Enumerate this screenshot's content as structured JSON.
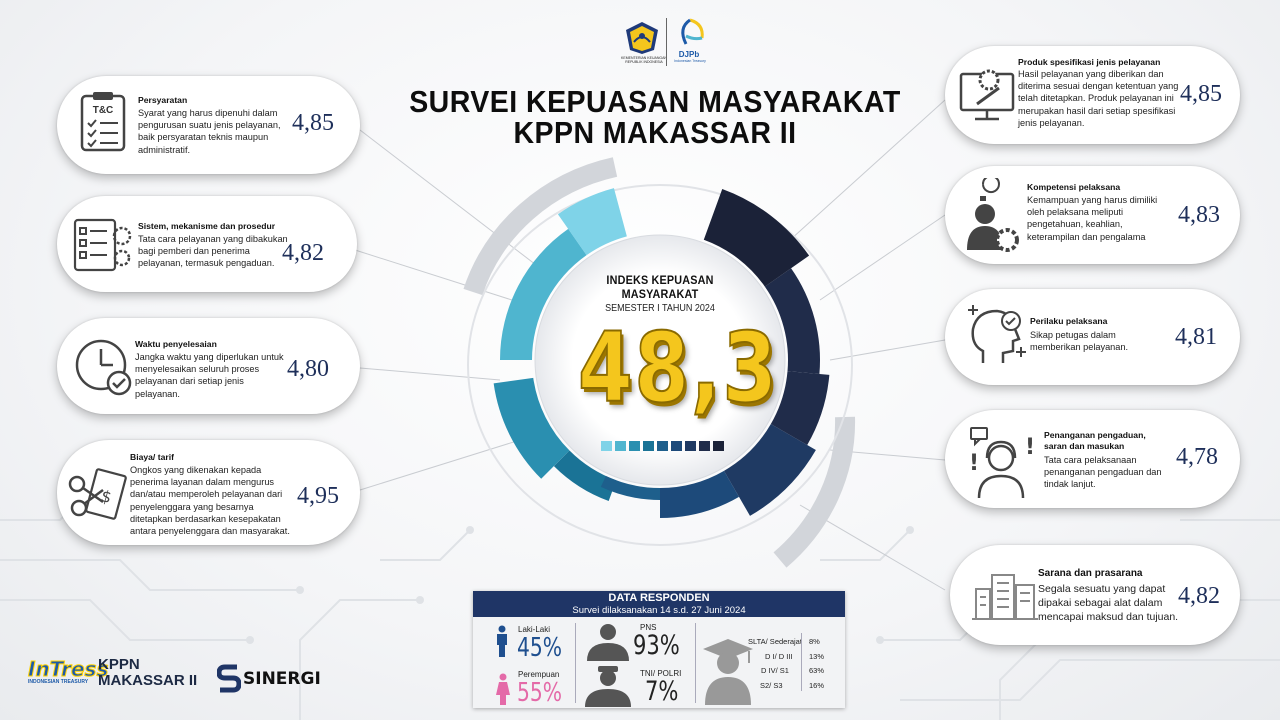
{
  "header": {
    "kemenkeu_caption": "KEMENTERIAN KEUANGAN\nREPUBLIK INDONESIA",
    "djpb_name": "DJPb",
    "djpb_sub": "Indonesian Treasury",
    "title_line1": "SURVEI KEPUASAN MASYARAKAT",
    "title_line2": "KPPN MAKASSAR II"
  },
  "index": {
    "title": "INDEKS KEPUASAN MASYARAKAT",
    "subtitle": "SEMESTER I TAHUN 2024",
    "value": "48,3"
  },
  "left_cards": [
    {
      "title": "Persyaratan",
      "desc": "Syarat yang harus dipenuhi dalam pengurusan suatu jenis pelayanan, baik persyaratan teknis maupun administratif.",
      "score": "4,85",
      "icon": "clipboard-checklist-icon",
      "icon_label": "T&C"
    },
    {
      "title": "Sistem, mekanisme dan prosedur",
      "desc": "Tata cara pelayanan yang dibakukan bagi pemberi dan penerima pelayanan, termasuk pengaduan.",
      "score": "4,82",
      "icon": "checklist-gears-icon"
    },
    {
      "title": "Waktu penyelesaian",
      "desc": "Jangka waktu yang diperlukan untuk menyelesaikan seluruh proses pelayanan dari setiap jenis pelayanan.",
      "score": "4,80",
      "icon": "clock-check-icon"
    },
    {
      "title": "Biaya/ tarif",
      "desc": "Ongkos yang dikenakan kepada penerima layanan dalam mengurus dan/atau memperoleh pelayanan dari penyelenggara yang besarnya ditetapkan berdasarkan kesepakatan antara penyelenggara dan masyarakat.",
      "score": "4,95",
      "icon": "scissors-receipt-icon"
    }
  ],
  "right_cards": [
    {
      "title": "Produk spesifikasi jenis pelayanan",
      "desc": "Hasil pelayanan yang diberikan dan diterima sesuai dengan ketentuan yang telah ditetapkan. Produk pelayanan ini merupakan hasil dari setiap spesifikasi jenis pelayanan.",
      "score": "4,85",
      "icon": "monitor-gear-icon"
    },
    {
      "title": "Kompetensi pelaksana",
      "desc": "Kemampuan yang harus dimiliki oleh pelaksana meliputi pengetahuan, keahlian, keterampilan dan pengalama",
      "score": "4,83",
      "icon": "person-bulb-gear-icon"
    },
    {
      "title": "Perilaku pelaksana",
      "desc": "Sikap petugas dalam memberikan pelayanan.",
      "score": "4,81",
      "icon": "head-check-icon"
    },
    {
      "title": "Penanganan pengaduan, saran dan masukan",
      "desc": "Tata cara pelaksanaan penanganan pengaduan dan tindak lanjut.",
      "score": "4,78",
      "icon": "operator-headset-icon"
    },
    {
      "title": "Sarana dan prasarana",
      "desc": "Segala sesuatu yang dapat dipakai sebagai alat dalam mencapai maksud dan tujuan.",
      "score": "4,82",
      "icon": "building-icon"
    }
  ],
  "respondents": {
    "title": "DATA RESPONDEN",
    "subtitle": "Survei dilaksanakan 14 s.d. 27 Juni 2024",
    "gender": [
      {
        "label": "Laki-Laki",
        "value": "45%",
        "color": "#1f4f8f"
      },
      {
        "label": "Perempuan",
        "value": "55%",
        "color": "#e46aa8"
      }
    ],
    "occupation": [
      {
        "label": "PNS",
        "value": "93%"
      },
      {
        "label": "TNI/ POLRI",
        "value": "7%"
      }
    ],
    "education": [
      {
        "label": "SLTA/ Sederajat",
        "value": "8%"
      },
      {
        "label": "D I/ D III",
        "value": "13%"
      },
      {
        "label": "D IV/ S1",
        "value": "63%"
      },
      {
        "label": "S2/ S3",
        "value": "16%"
      }
    ]
  },
  "footer": {
    "intress": "InTress",
    "intress_sub": "INDONESIAN TREASURY",
    "kppn_line1": "KPPN",
    "kppn_line2": "MAKASSAR II",
    "sinergi": "SINERGI"
  },
  "colors": {
    "navy": "#1f3566",
    "score": "#1e2f5a",
    "gold": "#f4c61d",
    "ring_palette": [
      "#7fd3e8",
      "#4fb5cf",
      "#2a8fb0",
      "#1a7396",
      "#1e5f8c",
      "#1d4a7a",
      "#1f3a63",
      "#202c4a",
      "#1b2238"
    ]
  }
}
